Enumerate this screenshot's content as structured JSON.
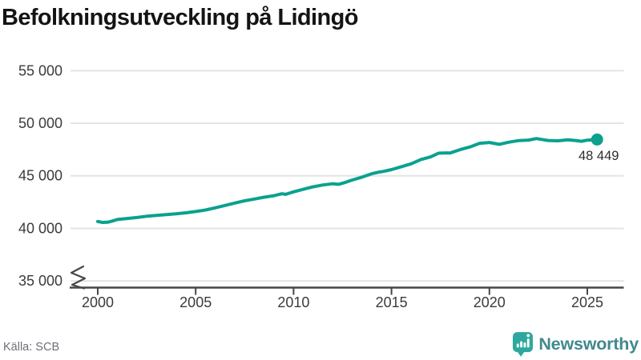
{
  "title": "Befolkningsutveckling på Lidingö",
  "source": "Källa: SCB",
  "brand": {
    "name": "Newsworthy"
  },
  "colors": {
    "line": "#0aa18f",
    "grid": "#e4e4e4",
    "axis": "#474747",
    "tick_text": "#3b3b3b",
    "title_text": "#141414",
    "value_label": "#2e2e2e",
    "source_text": "#6e6e78",
    "brand_icon": "#2ea89e",
    "brand_text": "#41898d"
  },
  "chart_data": {
    "type": "line",
    "title": "Befolkningsutveckling på Lidingö",
    "xlabel": "",
    "ylabel": "",
    "grid": "horizontal",
    "y_axis_break": true,
    "xlim": [
      1998.6,
      2026.9
    ],
    "ylim": [
      35000,
      55000
    ],
    "x_ticks": [
      {
        "value": 2000,
        "label": "2000"
      },
      {
        "value": 2005,
        "label": "2005"
      },
      {
        "value": 2010,
        "label": "2010"
      },
      {
        "value": 2015,
        "label": "2015"
      },
      {
        "value": 2020,
        "label": "2020"
      },
      {
        "value": 2025,
        "label": "2025"
      }
    ],
    "y_ticks": [
      {
        "value": 35000,
        "label": "35 000"
      },
      {
        "value": 40000,
        "label": "40 000"
      },
      {
        "value": 45000,
        "label": "45 000"
      },
      {
        "value": 50000,
        "label": "50 000"
      },
      {
        "value": 55000,
        "label": "55 000"
      }
    ],
    "series": [
      {
        "name": "Befolkning",
        "points": [
          [
            2000.0,
            40650
          ],
          [
            2000.25,
            40565
          ],
          [
            2000.5,
            40580
          ],
          [
            2000.75,
            40700
          ],
          [
            2001.0,
            40840
          ],
          [
            2001.5,
            40940
          ],
          [
            2002.0,
            41030
          ],
          [
            2002.5,
            41150
          ],
          [
            2003.0,
            41240
          ],
          [
            2003.5,
            41310
          ],
          [
            2004.0,
            41380
          ],
          [
            2004.5,
            41480
          ],
          [
            2005.0,
            41600
          ],
          [
            2005.5,
            41750
          ],
          [
            2006.0,
            41950
          ],
          [
            2006.5,
            42180
          ],
          [
            2007.0,
            42410
          ],
          [
            2007.5,
            42620
          ],
          [
            2008.0,
            42790
          ],
          [
            2008.5,
            42960
          ],
          [
            2009.0,
            43110
          ],
          [
            2009.4,
            43290
          ],
          [
            2009.6,
            43240
          ],
          [
            2010.0,
            43470
          ],
          [
            2010.5,
            43720
          ],
          [
            2011.0,
            43950
          ],
          [
            2011.5,
            44130
          ],
          [
            2012.0,
            44240
          ],
          [
            2012.3,
            44190
          ],
          [
            2012.6,
            44350
          ],
          [
            2013.0,
            44600
          ],
          [
            2013.5,
            44870
          ],
          [
            2014.0,
            45200
          ],
          [
            2014.3,
            45330
          ],
          [
            2014.6,
            45420
          ],
          [
            2015.0,
            45590
          ],
          [
            2015.5,
            45860
          ],
          [
            2016.0,
            46140
          ],
          [
            2016.5,
            46550
          ],
          [
            2017.0,
            46800
          ],
          [
            2017.4,
            47150
          ],
          [
            2017.8,
            47180
          ],
          [
            2018.0,
            47170
          ],
          [
            2018.5,
            47480
          ],
          [
            2019.0,
            47740
          ],
          [
            2019.5,
            48090
          ],
          [
            2020.0,
            48170
          ],
          [
            2020.5,
            47990
          ],
          [
            2021.0,
            48200
          ],
          [
            2021.5,
            48350
          ],
          [
            2022.0,
            48400
          ],
          [
            2022.4,
            48540
          ],
          [
            2022.8,
            48420
          ],
          [
            2023.0,
            48360
          ],
          [
            2023.5,
            48330
          ],
          [
            2024.0,
            48430
          ],
          [
            2024.4,
            48360
          ],
          [
            2024.7,
            48280
          ],
          [
            2025.0,
            48390
          ],
          [
            2025.5,
            48449
          ]
        ]
      }
    ],
    "last_point": {
      "x": 2025.5,
      "value": 48449,
      "label": "48 449"
    }
  }
}
